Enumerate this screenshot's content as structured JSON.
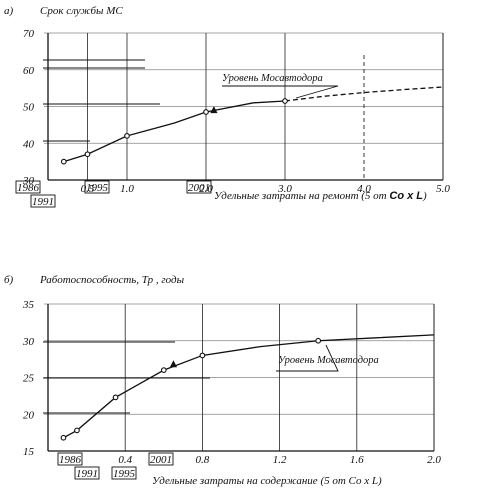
{
  "chart_data": [
    {
      "type": "line",
      "panel_label": "а)",
      "ylabel": "Срок службы МС",
      "xlabel_prefix": "Удельные затраты на ремонт (5 от ",
      "xlabel_bold": "Со х L",
      "xlabel_suffix": ")",
      "xlim": [
        0,
        5
      ],
      "ylim": [
        30,
        70
      ],
      "xticks": [
        "0.5",
        "1.0",
        "2.0",
        "3.0",
        "4.0",
        "5.0"
      ],
      "yticks": [
        "30",
        "40",
        "50",
        "60",
        "70"
      ],
      "years": [
        "1986",
        "1991",
        "1995",
        "2001"
      ],
      "annotation": "Уровень Мосавтодора",
      "series": [
        {
          "style": "solid",
          "x": [
            0.2,
            0.5,
            1.0,
            1.6,
            2.0,
            2.6,
            3.0
          ],
          "y": [
            35,
            37,
            42,
            45.5,
            48.5,
            51,
            51.5
          ]
        },
        {
          "style": "dashed",
          "x": [
            3.0,
            3.5,
            4.0,
            4.5,
            5.0
          ],
          "y": [
            51.5,
            52.8,
            53.8,
            54.6,
            55.3
          ]
        }
      ],
      "markers": [
        {
          "shape": "circle",
          "x": 0.2,
          "y": 35
        },
        {
          "shape": "circle",
          "x": 0.5,
          "y": 37
        },
        {
          "shape": "circle",
          "x": 1.0,
          "y": 42
        },
        {
          "shape": "circle",
          "x": 2.0,
          "y": 48.5
        },
        {
          "shape": "triangle",
          "x": 2.1,
          "y": 49
        },
        {
          "shape": "circle",
          "x": 3.0,
          "y": 51.5
        }
      ]
    },
    {
      "type": "line",
      "panel_label": "б)",
      "ylabel": "Работоспособность, Тр , годы",
      "xlabel_prefix": "Удельные затраты на содержание (5 от Со х L)",
      "xlabel_bold": "",
      "xlabel_suffix": "",
      "xlim": [
        0,
        2.0
      ],
      "ylim": [
        15,
        35
      ],
      "xticks": [
        "0.4",
        "0.8",
        "1.2",
        "1.6",
        "2.0"
      ],
      "yticks": [
        "15",
        "20",
        "25",
        "30",
        "35"
      ],
      "years": [
        "1986",
        "1991",
        "1995",
        "2001"
      ],
      "annotation": "Уровень Мосавтодора",
      "series": [
        {
          "style": "solid",
          "x": [
            0.08,
            0.15,
            0.35,
            0.6,
            0.8,
            1.1,
            1.4,
            1.7,
            2.0
          ],
          "y": [
            16.8,
            17.8,
            22.3,
            26,
            28,
            29.2,
            30,
            30.4,
            30.8
          ]
        }
      ],
      "markers": [
        {
          "shape": "circle",
          "x": 0.08,
          "y": 16.8
        },
        {
          "shape": "circle",
          "x": 0.15,
          "y": 17.8
        },
        {
          "shape": "circle",
          "x": 0.35,
          "y": 22.3
        },
        {
          "shape": "circle",
          "x": 0.6,
          "y": 26
        },
        {
          "shape": "triangle",
          "x": 0.65,
          "y": 26.8
        },
        {
          "shape": "circle",
          "x": 0.8,
          "y": 28
        },
        {
          "shape": "circle",
          "x": 1.4,
          "y": 30
        }
      ]
    }
  ]
}
